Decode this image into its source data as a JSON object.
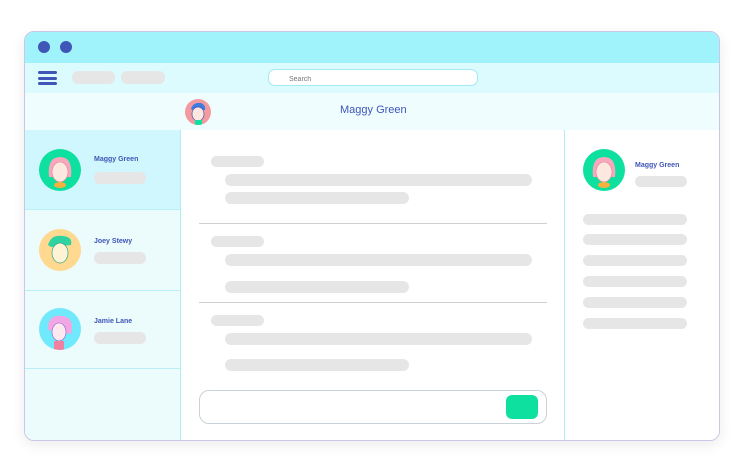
{
  "window": {
    "accent": "#3f56b7",
    "titlebar_color": "#a1f3fb",
    "send_color": "#0ee0a0"
  },
  "toolbar": {
    "search_placeholder": "Search"
  },
  "header": {
    "contact_name": "Maggy Green"
  },
  "sidebar": {
    "items": [
      {
        "name": "Maggy Green",
        "avatar_bg": "#0ee0a0",
        "selected": true
      },
      {
        "name": "Joey Stewy",
        "avatar_bg": "#ffd990",
        "selected": false
      },
      {
        "name": "Jamie Lane",
        "avatar_bg": "#6fe9fb",
        "selected": false
      }
    ]
  },
  "profile": {
    "name": "Maggy Green"
  }
}
